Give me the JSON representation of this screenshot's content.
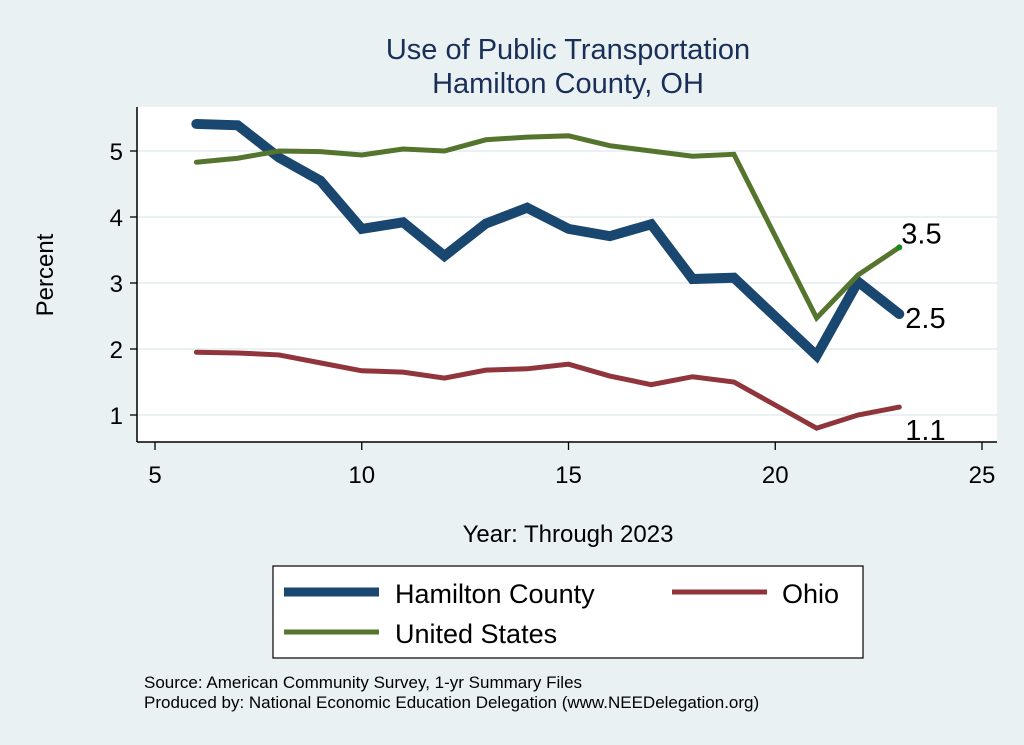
{
  "chart_data": {
    "type": "line",
    "title": "Use of Public Transportation",
    "subtitle": "Hamilton County, OH",
    "xlabel": "Year: Through 2023",
    "ylabel": "Percent",
    "xlim": [
      5,
      25
    ],
    "ylim": [
      0.6,
      5.8
    ],
    "x_ticks": [
      5,
      10,
      15,
      20,
      25
    ],
    "y_ticks": [
      1,
      2,
      3,
      4,
      5
    ],
    "grid": true,
    "legend_position": "bottom",
    "series": [
      {
        "name": "Hamilton County",
        "color": "#1a476f",
        "x": [
          6,
          7,
          8,
          9,
          10,
          11,
          12,
          13,
          14,
          15,
          16,
          17,
          18,
          19,
          21,
          22,
          23
        ],
        "values": [
          5.41,
          5.39,
          4.9,
          4.55,
          3.82,
          3.92,
          3.41,
          3.9,
          4.14,
          3.82,
          3.71,
          3.89,
          3.06,
          3.08,
          1.9,
          3.02,
          2.53
        ],
        "end_label": "2.5"
      },
      {
        "name": "Ohio",
        "color": "#90353b",
        "x": [
          6,
          7,
          8,
          9,
          10,
          11,
          12,
          13,
          14,
          15,
          16,
          17,
          18,
          19,
          21,
          22,
          23
        ],
        "values": [
          1.95,
          1.94,
          1.91,
          1.79,
          1.67,
          1.65,
          1.56,
          1.68,
          1.7,
          1.77,
          1.59,
          1.46,
          1.58,
          1.5,
          0.8,
          1.0,
          1.12
        ],
        "end_label": "1.1"
      },
      {
        "name": "United States",
        "color": "#55752f",
        "x": [
          6,
          7,
          8,
          9,
          10,
          11,
          12,
          13,
          14,
          15,
          16,
          17,
          18,
          19,
          21,
          22,
          23
        ],
        "values": [
          4.83,
          4.89,
          5.0,
          4.99,
          4.94,
          5.03,
          5.0,
          5.17,
          5.21,
          5.23,
          5.08,
          5.0,
          4.92,
          4.95,
          2.47,
          3.12,
          3.54
        ],
        "end_label": "3.5"
      }
    ],
    "legend": [
      "Hamilton County",
      "Ohio",
      "United States"
    ],
    "notes": [
      "Source: American Community Survey, 1-yr Summary Files",
      "Produced by: National Economic Education Delegation (www.NEEDelegation.org)"
    ]
  }
}
